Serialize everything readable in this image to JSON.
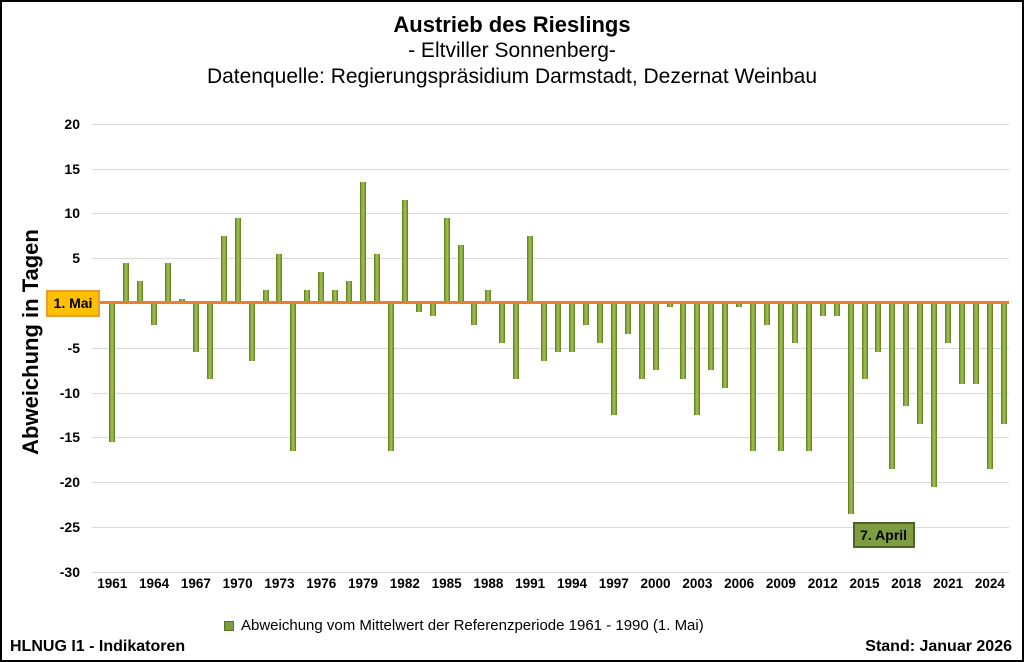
{
  "title": {
    "line1": "Austrieb des Rieslings",
    "line2": "- Eltviller Sonnenberg-",
    "line3": "Datenquelle: Regierungspräsidium Darmstadt, Dezernat Weinbau"
  },
  "legend": {
    "label": "Abweichung vom Mittelwert der Referenzperiode 1961 - 1990 (1. Mai)"
  },
  "footer": {
    "left": "HLNUG I1 - Indikatoren",
    "right": "Stand: Januar 2026"
  },
  "colors": {
    "bar_center": "#9cbe4e",
    "bar_edge": "#5c7a1e",
    "zero_line": "#ED7D31",
    "mai_box_fill": "#FFC000",
    "mai_box_border": "#ed9b33",
    "april_box_fill": "#7e9d40",
    "april_box_border": "#4f6228",
    "gridline": "#d9d9d9"
  },
  "chart_data": {
    "type": "bar",
    "title": "Austrieb des Rieslings - Eltviller Sonnenberg",
    "ylabel": "Abweichung in Tagen",
    "xlabel": "",
    "ylim": [
      -30,
      20
    ],
    "grid": true,
    "legend_position": "bottom",
    "baseline": {
      "value": 0,
      "label": "1. Mai"
    },
    "annotation": {
      "text": "7. April",
      "year": 2014
    },
    "yticks": [
      20,
      15,
      10,
      5,
      -5,
      -10,
      -15,
      -20,
      -25,
      -30
    ],
    "xticks": [
      1961,
      1964,
      1967,
      1970,
      1973,
      1976,
      1979,
      1982,
      1985,
      1988,
      1991,
      1994,
      1997,
      2000,
      2003,
      2006,
      2009,
      2012,
      2015,
      2018,
      2021,
      2024
    ],
    "x": [
      1961,
      1962,
      1963,
      1964,
      1965,
      1966,
      1967,
      1968,
      1969,
      1970,
      1971,
      1972,
      1973,
      1974,
      1975,
      1976,
      1977,
      1978,
      1979,
      1980,
      1981,
      1982,
      1983,
      1984,
      1985,
      1986,
      1987,
      1988,
      1989,
      1990,
      1991,
      1992,
      1993,
      1994,
      1995,
      1996,
      1997,
      1998,
      1999,
      2000,
      2001,
      2002,
      2003,
      2004,
      2005,
      2006,
      2007,
      2008,
      2009,
      2010,
      2011,
      2012,
      2013,
      2014,
      2015,
      2016,
      2017,
      2018,
      2019,
      2020,
      2021,
      2022,
      2023,
      2024,
      2025
    ],
    "values": [
      -15.5,
      4.5,
      2.5,
      -2.5,
      4.5,
      0.5,
      -5.5,
      -8.5,
      7.5,
      9.5,
      -6.5,
      1.5,
      5.5,
      -16.5,
      1.5,
      3.5,
      1.5,
      2.5,
      13.5,
      5.5,
      -16.5,
      11.5,
      -1.0,
      -1.5,
      9.5,
      6.5,
      -2.5,
      1.5,
      -4.5,
      -8.5,
      7.5,
      -6.5,
      -5.5,
      -5.5,
      -2.5,
      -4.5,
      -12.5,
      -3.5,
      -8.5,
      -7.5,
      -0.5,
      -8.5,
      -12.5,
      -7.5,
      -9.5,
      -0.5,
      -16.5,
      -2.5,
      -16.5,
      -4.5,
      -16.5,
      -1.5,
      -1.5,
      -23.5,
      -8.5,
      -5.5,
      -18.5,
      -11.5,
      -13.5,
      -20.5,
      -4.5,
      -9.0,
      -9.0,
      -18.5,
      -13.5
    ]
  }
}
